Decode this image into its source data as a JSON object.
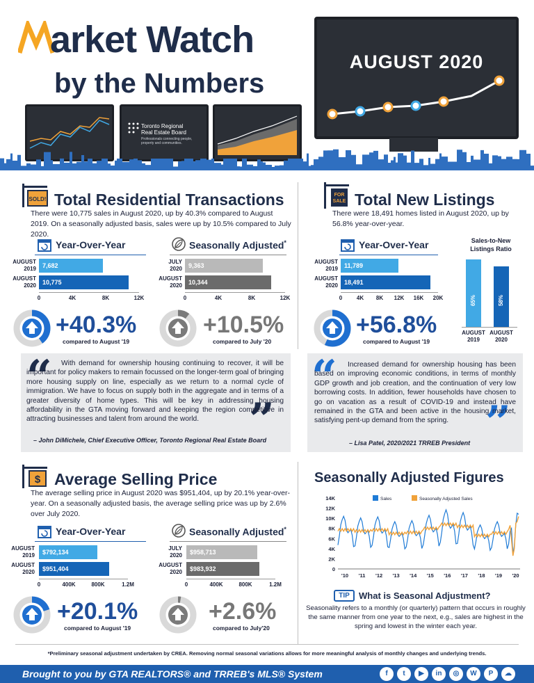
{
  "header": {
    "title_line1": "arket Watch",
    "title_m": "M",
    "title_line2": "by the Numbers",
    "month": "AUGUST 2020",
    "monitor_org": "Toronto Regional\nReal Estate Board",
    "monitor_tagline": "Professionals connecting people, property and communities."
  },
  "trans": {
    "sold_sign": "SOLD!",
    "heading": "Total Residential Transactions",
    "intro": "There were 10,775 sales in August 2020, up by 40.3% compared to August 2019. On a seasonally adjusted basis, sales were up by 10.5% compared to July 2020.",
    "yoy_title": "Year-Over-Year",
    "sa_title": "Seasonally Adjusted",
    "sa_star": "*",
    "yoy_bars": [
      {
        "label1": "AUGUST",
        "label2": "2019",
        "value_text": "7,682"
      },
      {
        "label1": "AUGUST",
        "label2": "2020",
        "value_text": "10,775"
      }
    ],
    "sa_bars": [
      {
        "label1": "JULY",
        "label2": "2020",
        "value_text": "9,363"
      },
      {
        "label1": "AUGUST",
        "label2": "2020",
        "value_text": "10,344"
      }
    ],
    "ticks": [
      "0",
      "4K",
      "8K",
      "12K"
    ],
    "yoy_pct": "+40.3%",
    "yoy_cmp": "compared to August '19",
    "sa_pct": "+10.5%",
    "sa_cmp": "compared to July '20"
  },
  "listings": {
    "sign_line1": "FOR",
    "sign_line2": "SALE",
    "heading": "Total New Listings",
    "intro": "There were 18,491 homes listed in August 2020, up by 56.8% year-over-year.",
    "yoy_title": "Year-Over-Year",
    "bars": [
      {
        "label1": "AUGUST",
        "label2": "2019",
        "value_text": "11,789"
      },
      {
        "label1": "AUGUST",
        "label2": "2020",
        "value_text": "18,491"
      }
    ],
    "ticks": [
      "0",
      "4K",
      "8K",
      "12K",
      "16K",
      "20K"
    ],
    "pct": "+56.8%",
    "cmp": "compared to August '19",
    "snlr_title1": "Sales-to-New",
    "snlr_title2": "Listings Ratio",
    "snlr": [
      {
        "pct_text": "65%",
        "label1": "AUGUST",
        "label2": "2019"
      },
      {
        "pct_text": "58%",
        "label1": "AUGUST",
        "label2": "2020"
      }
    ]
  },
  "quote1": {
    "text": "With demand for ownership housing continuing to recover, it will be important for policy makers to remain focussed on the longer-term goal of bringing more housing supply on line, especially as we return to a normal cycle of immigration. We have to focus on supply both in the aggregate and in terms of a greater diversity of home types. This will be key in addressing housing affordability in the GTA moving forward and keeping the region competitive in attracting businesses and talent from around the world.",
    "author": "– John DiMichele, Chief Executive Officer, Toronto Regional Real Estate Board"
  },
  "quote2": {
    "text": "Increased demand for ownership housing has been based on improving economic conditions, in terms of monthly GDP growth and job creation, and the continuation of very low borrowing costs. In addition, fewer households have chosen to go on vacation as a result of COVID-19 and instead have remained in the GTA and been active in the housing market, satisfying pent-up demand from the spring.",
    "author": "– Lisa Patel, 2020/2021 TRREB President"
  },
  "price": {
    "dollar": "$",
    "heading": "Average Selling Price",
    "intro": "The average selling price in August 2020 was $951,404, up by 20.1% year-over-year. On a seasonally adjusted basis, the average selling price was up by 2.6% over July 2020.",
    "yoy_title": "Year-Over-Year",
    "sa_title": "Seasonally Adjusted",
    "sa_star": "*",
    "yoy_bars": [
      {
        "label1": "AUGUST",
        "label2": "2019",
        "value_text": "$792,134"
      },
      {
        "label1": "AUGUST",
        "label2": "2020",
        "value_text": "$951,404"
      }
    ],
    "sa_bars": [
      {
        "label1": "JULY",
        "label2": "2020",
        "value_text": "$958,713"
      },
      {
        "label1": "AUGUST",
        "label2": "2020",
        "value_text": "$983,932"
      }
    ],
    "ticks": [
      "0",
      "400K",
      "800K",
      "1.2M"
    ],
    "yoy_pct": "+20.1%",
    "yoy_cmp": "compared to August '19",
    "sa_pct": "+2.6%",
    "sa_cmp": "compared to July'20"
  },
  "seasonal": {
    "heading": "Seasonally Adjusted Figures",
    "legend_sales": "Sales",
    "legend_sa": "Seasonally Adjusted Sales",
    "tip_badge": "TIP",
    "tip_heading": "What is Seasonal Adjustment?",
    "tip_text": "Seasonality refers to a monthly (or quarterly) pattern that occurs in roughly the same manner from one year to the next, e.g., sales are highest in the spring and lowest in the winter each year."
  },
  "footnote": "*Preliminary seasonal adjustment undertaken by CREA. Removing normal seasonal variations allows for more meaningful analysis of monthly changes and underlying trends.",
  "footer": {
    "text": "Brought to you by GTA REALTORS® and TRREB's MLS® System",
    "icons": [
      "f",
      "t",
      "▶",
      "in",
      "◎",
      "W",
      "P",
      "☁"
    ]
  },
  "colors": {
    "navy": "#1f2d4a",
    "blue_light": "#41a9e5",
    "blue_dark": "#1565b7",
    "orange": "#f0a23a",
    "footer": "#1f5fae"
  },
  "chart_data": [
    {
      "type": "bar",
      "id": "trans_yoy",
      "categories": [
        "AUGUST 2019",
        "AUGUST 2020"
      ],
      "values": [
        7682,
        10775
      ],
      "xlim": [
        0,
        12000
      ],
      "tick_labels": [
        "0",
        "4K",
        "8K",
        "12K"
      ]
    },
    {
      "type": "bar",
      "id": "trans_sa",
      "categories": [
        "JULY 2020",
        "AUGUST 2020"
      ],
      "values": [
        9363,
        10344
      ],
      "xlim": [
        0,
        12000
      ],
      "tick_labels": [
        "0",
        "4K",
        "8K",
        "12K"
      ]
    },
    {
      "type": "bar",
      "id": "listings_yoy",
      "categories": [
        "AUGUST 2019",
        "AUGUST 2020"
      ],
      "values": [
        11789,
        18491
      ],
      "xlim": [
        0,
        20000
      ],
      "tick_labels": [
        "0",
        "4K",
        "8K",
        "12K",
        "16K",
        "20K"
      ]
    },
    {
      "type": "bar",
      "id": "snlr",
      "categories": [
        "AUGUST 2019",
        "AUGUST 2020"
      ],
      "values": [
        65,
        58
      ],
      "ylim": [
        0,
        100
      ],
      "title": "Sales-to-New Listings Ratio"
    },
    {
      "type": "bar",
      "id": "price_yoy",
      "categories": [
        "AUGUST 2019",
        "AUGUST 2020"
      ],
      "values": [
        792134,
        951404
      ],
      "xlim": [
        0,
        1200000
      ],
      "tick_labels": [
        "0",
        "400K",
        "800K",
        "1.2M"
      ]
    },
    {
      "type": "bar",
      "id": "price_sa",
      "categories": [
        "JULY 2020",
        "AUGUST 2020"
      ],
      "values": [
        958713,
        983932
      ],
      "xlim": [
        0,
        1200000
      ],
      "tick_labels": [
        "0",
        "400K",
        "800K",
        "1.2M"
      ]
    },
    {
      "type": "pie",
      "id": "donuts",
      "values": [
        40.3,
        10.5,
        56.8,
        20.1,
        2.6
      ]
    },
    {
      "type": "line",
      "id": "seasonal",
      "title": "Seasonally Adjusted Figures",
      "ylim": [
        0,
        14000
      ],
      "y_tick_labels": [
        "0",
        "2K",
        "4K",
        "6K",
        "8K",
        "10K",
        "12K",
        "14K"
      ],
      "x_tick_labels": [
        "'10",
        "'11",
        "'12",
        "'13",
        "'14",
        "'15",
        "'16",
        "'17",
        "'18",
        "'19",
        "'20"
      ],
      "x_start": 2010,
      "x_end": 2020.67,
      "series": [
        {
          "name": "Sales",
          "color": "#1f7bd6",
          "monthly_pattern": [
            4800,
            6600,
            8900,
            9900,
            10600,
            9800,
            8000,
            7300,
            7600,
            8000,
            6800,
            4500
          ],
          "year_scale": [
            0.98,
            0.95,
            0.97,
            0.88,
            0.9,
            1.0,
            1.1,
            1.05,
            0.82,
            0.88,
            0.92
          ],
          "values_2020": [
            4900,
            7500,
            8000,
            2900,
            4600,
            8700,
            11000,
            10775
          ]
        },
        {
          "name": "Seasonally Adjusted Sales",
          "color": "#f0a23a",
          "annual_levels": [
            7700,
            7500,
            7700,
            7000,
            7200,
            8000,
            8800,
            8400,
            6600,
            7100,
            7400
          ],
          "values_2020": [
            7800,
            8600,
            5800,
            2600,
            4000,
            9000,
            9363,
            10344
          ]
        }
      ]
    }
  ]
}
